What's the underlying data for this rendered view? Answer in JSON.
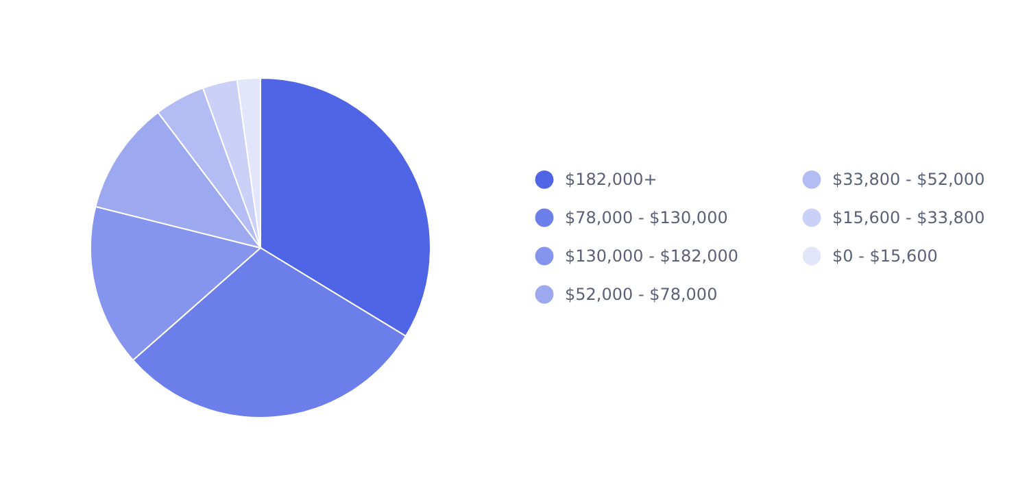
{
  "chart_data": {
    "type": "pie",
    "categories": [
      "$182,000+",
      "$78,000 - $130,000",
      "$130,000 - $182,000",
      "$52,000 - $78,000",
      "$33,800 - $52,000",
      "$15,600 - $33,800",
      "$0 - $15,600"
    ],
    "values": [
      33.7,
      29.8,
      15.4,
      10.8,
      4.8,
      3.3,
      2.2
    ],
    "colors": [
      "#5064e6",
      "#6c7ee9",
      "#8594ec",
      "#9da9ef",
      "#b4bdf3",
      "#cbd1f6",
      "#e3e6fa"
    ],
    "legend": "right"
  }
}
